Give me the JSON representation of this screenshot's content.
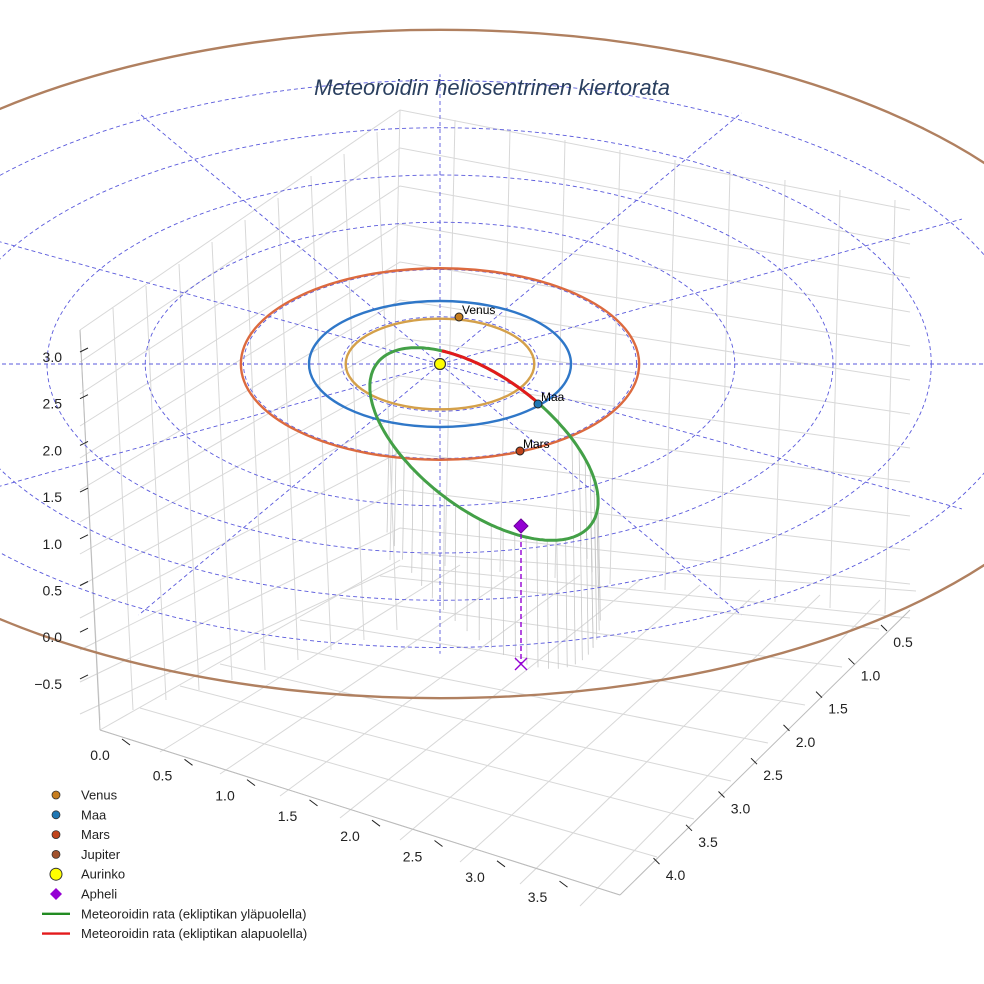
{
  "chart_data": {
    "type": "scatter3d",
    "title": "Meteoroidin heliosentrinen kiertorata",
    "axes": {
      "x_ticks": [
        "0.0",
        "0.5",
        "1.0",
        "1.5",
        "2.0",
        "2.5",
        "3.0",
        "3.5"
      ],
      "y_ticks": [
        "0.5",
        "1.0",
        "1.5",
        "2.0",
        "2.5",
        "3.0",
        "3.5",
        "4.0"
      ],
      "z_ticks": [
        "3.0",
        "2.5",
        "2.0",
        "1.5",
        "1.0",
        "0.5",
        "0.0",
        "−0.5"
      ]
    },
    "orbits": [
      {
        "name": "Venus",
        "color": "#d4a04a",
        "radius_au": 0.72
      },
      {
        "name": "Maa",
        "color": "#2f77c8",
        "radius_au": 1.0
      },
      {
        "name": "Mars",
        "color": "#dc6a3f",
        "radius_au": 1.52
      },
      {
        "name": "Jupiter",
        "color": "#b08060",
        "radius_au": 5.2
      }
    ],
    "points": [
      {
        "name": "Venus",
        "label": "Venus",
        "color": "#c77d1e"
      },
      {
        "name": "Maa",
        "label": "Maa",
        "color": "#1f77b4"
      },
      {
        "name": "Mars",
        "label": "Mars",
        "color": "#c0441c"
      },
      {
        "name": "Aurinko",
        "label": "",
        "color": "#ffff00"
      },
      {
        "name": "Apheli",
        "label": "",
        "color": "#9400d3"
      }
    ],
    "legend": {
      "placement": "bottom-left",
      "entries": [
        {
          "label": "Venus",
          "color": "#c77d1e",
          "symbol": "dot"
        },
        {
          "label": "Maa",
          "color": "#1f77b4",
          "symbol": "dot"
        },
        {
          "label": "Mars",
          "color": "#c0441c",
          "symbol": "dot"
        },
        {
          "label": "Jupiter",
          "color": "#a0522d",
          "symbol": "dot"
        },
        {
          "label": "Aurinko",
          "color": "#ffff00",
          "symbol": "big-dot"
        },
        {
          "label": "Apheli",
          "color": "#9400d3",
          "symbol": "diamond"
        },
        {
          "label": "Meteoroidin rata (ekliptikan yläpuolella)",
          "color": "#228b22",
          "symbol": "line"
        },
        {
          "label": "Meteoroidin rata (ekliptikan alapuolella)",
          "color": "#e31a1c",
          "symbol": "line"
        }
      ]
    },
    "meteoroid": {
      "above_color": "#43a047",
      "below_color": "#e31a1c"
    },
    "reference_grid_color": "#5a5adc"
  }
}
